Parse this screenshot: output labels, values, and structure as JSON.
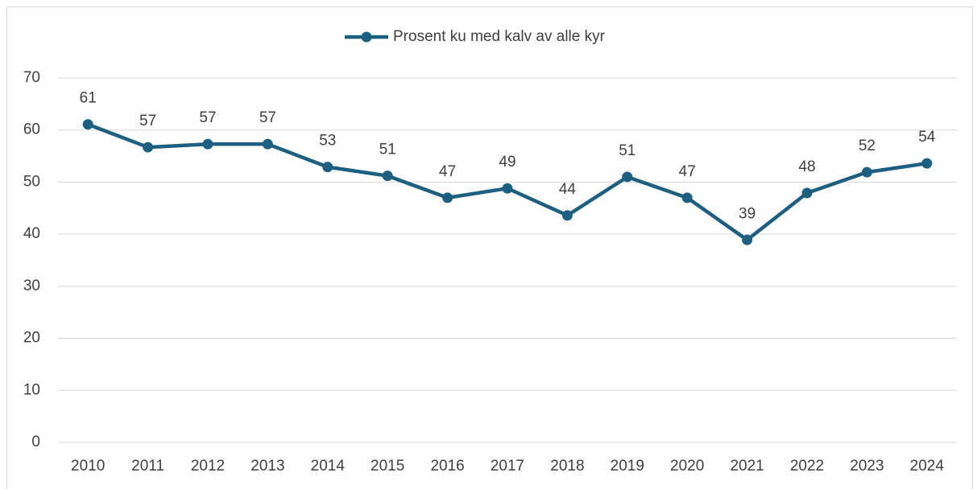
{
  "chart_data": {
    "type": "line",
    "categories": [
      "2010",
      "2011",
      "2012",
      "2013",
      "2014",
      "2015",
      "2016",
      "2017",
      "2018",
      "2019",
      "2020",
      "2021",
      "2022",
      "2023",
      "2024"
    ],
    "series": [
      {
        "name": "Prosent ku med kalv av alle kyr",
        "color": "#1c5f80",
        "values": [
          61.1,
          56.7,
          57.3,
          57.3,
          52.9,
          51.2,
          47.0,
          48.8,
          43.6,
          51.0,
          47.0,
          38.9,
          47.9,
          51.9,
          53.6
        ],
        "value_labels": [
          "61",
          "57",
          "57",
          "57",
          "53",
          "51",
          "47",
          "49",
          "44",
          "51",
          "47",
          "39",
          "48",
          "52",
          "54"
        ]
      }
    ],
    "ylim": [
      0,
      70
    ],
    "yticks": [
      0,
      10,
      20,
      30,
      40,
      50,
      60,
      70
    ],
    "grid": true,
    "legend": "top"
  }
}
